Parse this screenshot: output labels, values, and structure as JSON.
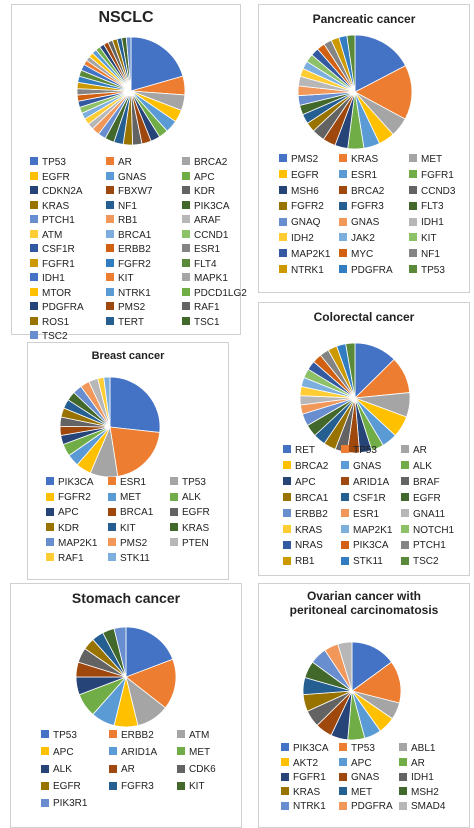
{
  "palette": [
    "#4472c4",
    "#ed7d31",
    "#a5a5a5",
    "#ffc000",
    "#5b9bd5",
    "#70ad47",
    "#264478",
    "#9e480e",
    "#636363",
    "#997300",
    "#255e91",
    "#43682b",
    "#698ed0",
    "#f1975a",
    "#b7b7b7",
    "#ffcd33",
    "#7cafdd",
    "#8cc168",
    "#335aa1",
    "#d26012",
    "#848484",
    "#cc9a00",
    "#327dc2",
    "#5a8a39"
  ],
  "chart_data": [
    {
      "type": "pie",
      "title": "NSCLC",
      "categories": [
        "TP53",
        "AR",
        "BRCA2",
        "EGFR",
        "GNAS",
        "APC",
        "CDKN2A",
        "FBXW7",
        "KDR",
        "KRAS",
        "NF1",
        "PIK3CA",
        "PTCH1",
        "RB1",
        "ARAF",
        "ATM",
        "BRCA1",
        "CCND1",
        "CSF1R",
        "ERBB2",
        "ESR1",
        "FGFR1",
        "FGFR2",
        "FLT4",
        "IDH1",
        "KIT",
        "MAPK1",
        "MTOR",
        "NTRK1",
        "PDCD1LG2",
        "PDGFRA",
        "PMS2",
        "RAF1",
        "ROS1",
        "TERT",
        "TSC1",
        "TSC2"
      ],
      "values": [
        22,
        6,
        5,
        4,
        4,
        3,
        3,
        3,
        3,
        3,
        3,
        3,
        2.5,
        2.5,
        2,
        2,
        2,
        2,
        2,
        2,
        2,
        2,
        2,
        2,
        2,
        1.5,
        1.5,
        1.5,
        1.5,
        1.5,
        1.5,
        1.5,
        1.5,
        1.5,
        1.5,
        1.5,
        1.5
      ]
    },
    {
      "type": "pie",
      "title": "Pancreatic cancer",
      "categories": [
        "PMS2",
        "KRAS",
        "MET",
        "EGFR",
        "ESR1",
        "FGFR1",
        "MSH6",
        "BRCA2",
        "CCND3",
        "FGFR2",
        "FGFR3",
        "FLT3",
        "GNAQ",
        "GNAS",
        "IDH1",
        "IDH2",
        "JAK2",
        "KIT",
        "MAP2K1",
        "MYC",
        "NF1",
        "NTRK1",
        "PDGFRA",
        "TP53"
      ],
      "values": [
        19,
        17,
        6,
        5,
        5,
        5,
        4,
        4,
        4,
        3,
        3,
        3,
        3,
        3,
        3,
        2.5,
        2.5,
        2.5,
        2.5,
        2.5,
        2.5,
        2.5,
        2.5,
        2.5
      ]
    },
    {
      "type": "pie",
      "title": "Breast cancer",
      "categories": [
        "PIK3CA",
        "ESR1",
        "TP53",
        "FGFR2",
        "MET",
        "ALK",
        "APC",
        "BRCA1",
        "EGFR",
        "KDR",
        "KIT",
        "KRAS",
        "MAP2K1",
        "PMS2",
        "PTEN",
        "RAF1",
        "STK11"
      ],
      "values": [
        27,
        21,
        9,
        5,
        4,
        4,
        3,
        3,
        3,
        3,
        3,
        3,
        3,
        3,
        3,
        2,
        2
      ]
    },
    {
      "type": "pie",
      "title": "Colorectal cancer",
      "categories": [
        "RET",
        "TP53",
        "AR",
        "BRCA2",
        "GNAS",
        "ALK",
        "APC",
        "ARID1A",
        "BRAF",
        "BRCA1",
        "CSF1R",
        "EGFR",
        "ERBB2",
        "ESR1",
        "GNA11",
        "KRAS",
        "MAP2K1",
        "NOTCH1",
        "NRAS",
        "PIK3CA",
        "PTCH1",
        "RB1",
        "STK11",
        "TSC2"
      ],
      "values": [
        14,
        12,
        8,
        7,
        5,
        4,
        4,
        4,
        4,
        4,
        4,
        4,
        4,
        3,
        3,
        3,
        3,
        3,
        3,
        3,
        3,
        3,
        3,
        3
      ]
    },
    {
      "type": "pie",
      "title": "Stomach cancer",
      "categories": [
        "TP53",
        "ERBB2",
        "ATM",
        "APC",
        "ARID1A",
        "MET",
        "ALK",
        "AR",
        "CDK6",
        "EGFR",
        "FGFR3",
        "KIT",
        "PIK3R1"
      ],
      "values": [
        20,
        17,
        11,
        8,
        8,
        8,
        6,
        5,
        5,
        4,
        4,
        4,
        4
      ]
    },
    {
      "type": "pie",
      "title": "Ovarian cancer with peritoneal carcinomatosis",
      "categories": [
        "PIK3CA",
        "TP53",
        "ABL1",
        "AKT2",
        "APC",
        "AR",
        "FGFR1",
        "GNAS",
        "IDH1",
        "KRAS",
        "MET",
        "MSH2",
        "NTRK1",
        "PDGFRA",
        "SMAD4"
      ],
      "values": [
        16,
        15,
        6,
        6,
        6,
        6,
        6,
        6,
        6,
        6,
        6,
        6,
        6,
        5,
        5
      ]
    }
  ]
}
